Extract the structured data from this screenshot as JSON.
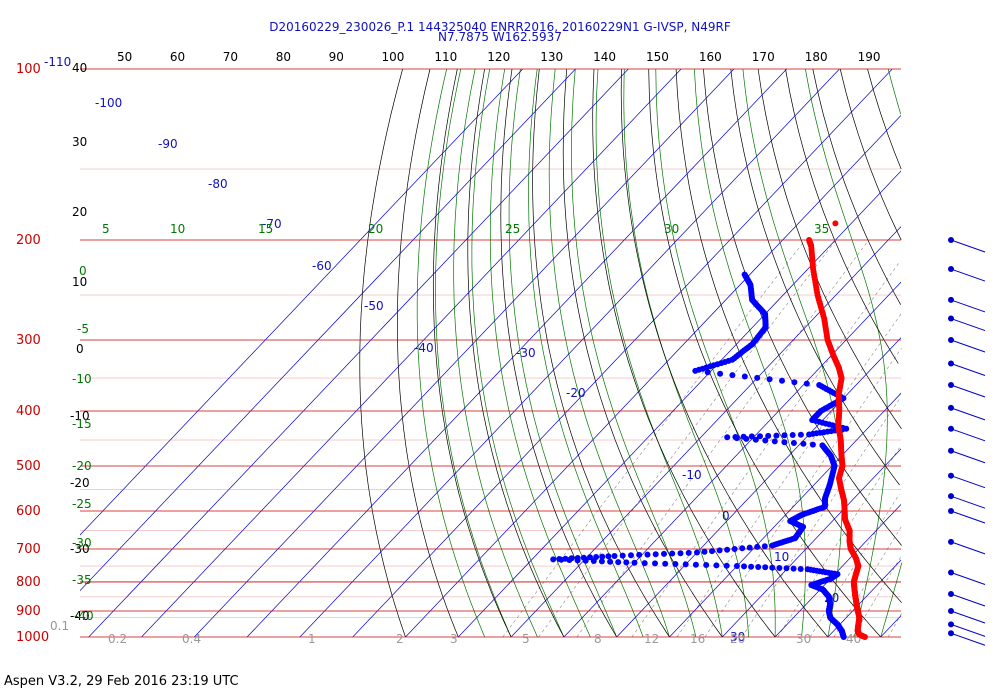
{
  "header": {
    "line1": "D20160229_230026_P.1 144325040 ENRR2016, 20160229N1 G-IVSP, N49RF",
    "line2": "N7.7875 W162.5937"
  },
  "footer": "Aspen V3.2, 29 Feb 2016  23:19 UTC",
  "colors": {
    "temperature": "#ff0000",
    "dewpoint": "#0000ff",
    "isobar": "#cc0000",
    "isotherm": "#0000cc",
    "dry_adiabat": "#000000",
    "moist_adiabat": "#007700",
    "mixing_ratio": "#999999",
    "wind_barb": "#0000cc"
  },
  "chart_data": {
    "type": "skew-t log-p",
    "pressure_range_hpa": [
      1000,
      100
    ],
    "pressure_labels": [
      "100",
      "200",
      "300",
      "400",
      "500",
      "600",
      "700",
      "800",
      "900",
      "1000"
    ],
    "fahrenheit_labels": [
      "50",
      "60",
      "70",
      "80",
      "90",
      "100",
      "110",
      "120",
      "130",
      "140",
      "150",
      "160",
      "170",
      "180",
      "190"
    ],
    "left_scale_labels": [
      "-110",
      "40",
      "30",
      "20",
      "10",
      "0",
      "-10",
      "-20",
      "-30",
      "-40"
    ],
    "isotherm_labels": [
      "-100",
      "-90",
      "-80",
      "-70",
      "-60",
      "-50",
      "-40",
      "-30",
      "-20",
      "-10",
      "0",
      "10",
      "20",
      "30"
    ],
    "theta_e_labels": [
      "5",
      "10",
      "15",
      "20",
      "25",
      "30",
      "35",
      "0",
      "-5",
      "-10",
      "-15",
      "-20",
      "-25",
      "-30",
      "-35",
      "-40"
    ],
    "mixing_ratio_labels": [
      "0.1",
      "0.2",
      "0.4",
      "1",
      "2",
      "3",
      "5",
      "8",
      "12",
      "16",
      "20",
      "30",
      "40"
    ],
    "temperature_profile": [
      {
        "p": 1000,
        "t": 27.0
      },
      {
        "p": 990,
        "t": 25.5
      },
      {
        "p": 975,
        "t": 24.5
      },
      {
        "p": 950,
        "t": 23.5
      },
      {
        "p": 925,
        "t": 22.5
      },
      {
        "p": 900,
        "t": 21.0
      },
      {
        "p": 875,
        "t": 19.5
      },
      {
        "p": 850,
        "t": 18.0
      },
      {
        "p": 825,
        "t": 16.5
      },
      {
        "p": 800,
        "t": 15.0
      },
      {
        "p": 775,
        "t": 14.0
      },
      {
        "p": 750,
        "t": 13.0
      },
      {
        "p": 725,
        "t": 11.0
      },
      {
        "p": 700,
        "t": 8.5
      },
      {
        "p": 680,
        "t": 7.0
      },
      {
        "p": 650,
        "t": 5.0
      },
      {
        "p": 620,
        "t": 2.0
      },
      {
        "p": 600,
        "t": 0.5
      },
      {
        "p": 575,
        "t": -1.5
      },
      {
        "p": 550,
        "t": -4.0
      },
      {
        "p": 525,
        "t": -6.5
      },
      {
        "p": 500,
        "t": -8.0
      },
      {
        "p": 475,
        "t": -10.5
      },
      {
        "p": 450,
        "t": -13.0
      },
      {
        "p": 425,
        "t": -16.0
      },
      {
        "p": 400,
        "t": -18.5
      },
      {
        "p": 375,
        "t": -21.5
      },
      {
        "p": 350,
        "t": -24.0
      },
      {
        "p": 335,
        "t": -26.5
      },
      {
        "p": 320,
        "t": -29.5
      },
      {
        "p": 300,
        "t": -33.5
      },
      {
        "p": 275,
        "t": -38.0
      },
      {
        "p": 250,
        "t": -43.5
      },
      {
        "p": 225,
        "t": -49.0
      },
      {
        "p": 205,
        "t": -53.5
      },
      {
        "p": 200,
        "t": -55.0
      }
    ],
    "dewpoint_profile": [
      {
        "p": 1000,
        "td": 23.0
      },
      {
        "p": 975,
        "td": 21.5
      },
      {
        "p": 950,
        "td": 19.5
      },
      {
        "p": 925,
        "td": 17.0
      },
      {
        "p": 900,
        "td": 15.5
      },
      {
        "p": 875,
        "td": 14.5
      },
      {
        "p": 850,
        "td": 13.0
      },
      {
        "p": 825,
        "td": 10.5
      },
      {
        "p": 810,
        "td": 7.5
      },
      {
        "p": 790,
        "td": 10.0
      },
      {
        "p": 775,
        "td": 10.5
      },
      {
        "p": 760,
        "td": 4.0
      },
      {
        "p": 750,
        "td": -10.0
      },
      {
        "p": 740,
        "td": -30.0
      },
      {
        "p": 730,
        "td": -46.0
      },
      {
        "p": 720,
        "td": -35.0
      },
      {
        "p": 710,
        "td": -20.0
      },
      {
        "p": 690,
        "td": -7.0
      },
      {
        "p": 670,
        "td": -4.0
      },
      {
        "p": 640,
        "td": -4.5
      },
      {
        "p": 625,
        "td": -8.0
      },
      {
        "p": 610,
        "td": -7.0
      },
      {
        "p": 590,
        "td": -4.0
      },
      {
        "p": 570,
        "td": -5.5
      },
      {
        "p": 540,
        "td": -7.0
      },
      {
        "p": 500,
        "td": -9.5
      },
      {
        "p": 480,
        "td": -12.0
      },
      {
        "p": 460,
        "td": -15.5
      },
      {
        "p": 445,
        "td": -35.0
      },
      {
        "p": 440,
        "td": -20.0
      },
      {
        "p": 430,
        "td": -14.0
      },
      {
        "p": 415,
        "td": -22.0
      },
      {
        "p": 400,
        "td": -22.0
      },
      {
        "p": 380,
        "td": -20.0
      },
      {
        "p": 360,
        "td": -27.0
      },
      {
        "p": 340,
        "td": -53.0
      },
      {
        "p": 325,
        "td": -48.0
      },
      {
        "p": 305,
        "td": -47.0
      },
      {
        "p": 285,
        "td": -47.5
      },
      {
        "p": 270,
        "td": -50.0
      },
      {
        "p": 255,
        "td": -55.0
      },
      {
        "p": 240,
        "td": -58.0
      },
      {
        "p": 230,
        "td": -61.0
      }
    ],
    "wind_barbs": [
      {
        "p": 200
      },
      {
        "p": 225
      },
      {
        "p": 255
      },
      {
        "p": 275
      },
      {
        "p": 300
      },
      {
        "p": 330
      },
      {
        "p": 360
      },
      {
        "p": 395
      },
      {
        "p": 430
      },
      {
        "p": 470
      },
      {
        "p": 520
      },
      {
        "p": 565
      },
      {
        "p": 600
      },
      {
        "p": 680
      },
      {
        "p": 770
      },
      {
        "p": 840
      },
      {
        "p": 900
      },
      {
        "p": 950
      },
      {
        "p": 985
      }
    ],
    "stray_point": {
      "p": 187,
      "t": -53.0
    }
  }
}
